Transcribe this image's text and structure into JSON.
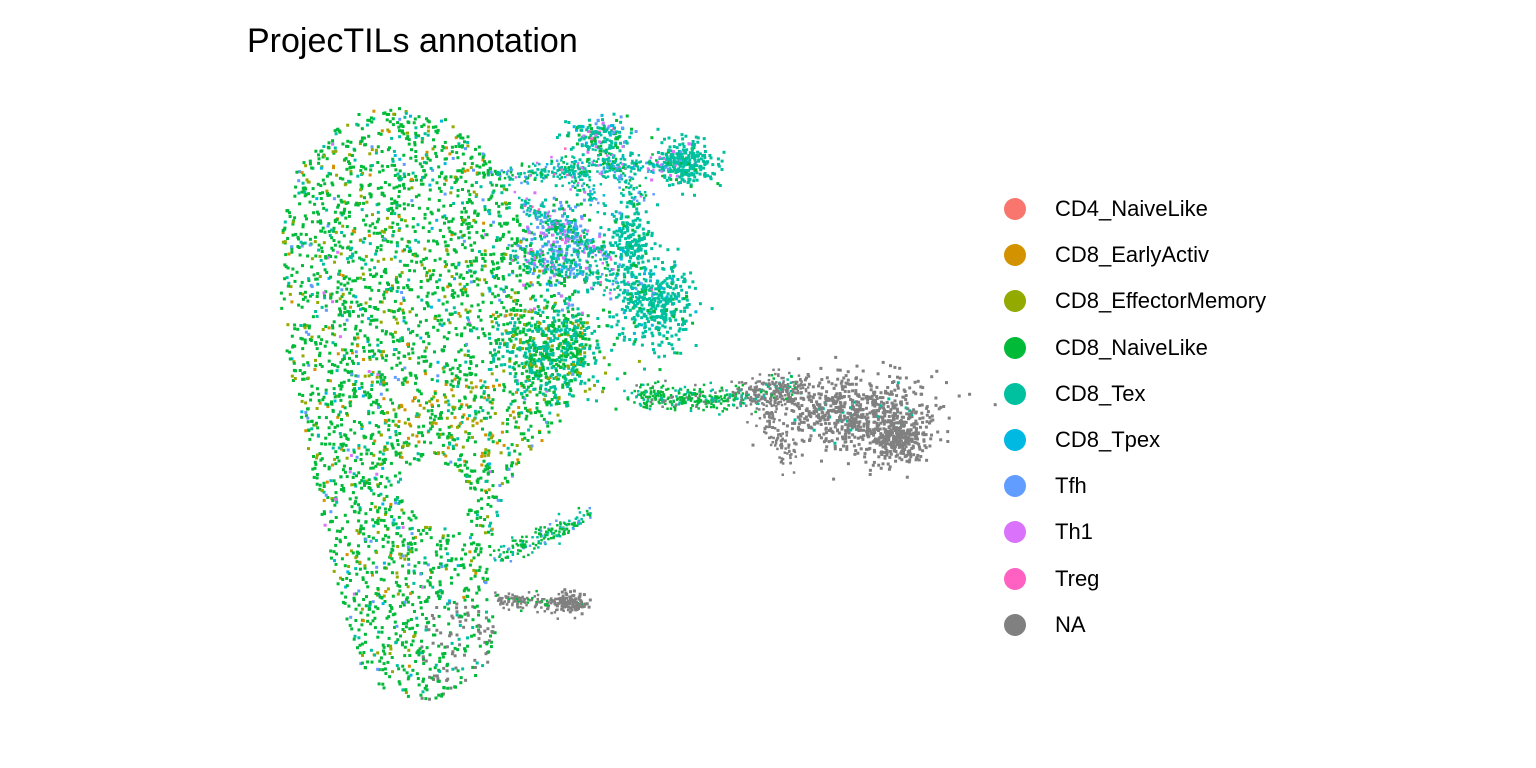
{
  "chart_data": {
    "type": "scatter",
    "title": "ProjecTILs annotation",
    "xlabel": "",
    "ylabel": "",
    "grid": false,
    "axes_visible": false,
    "legend_placement": "right",
    "categories": [
      {
        "name": "CD4_NaiveLike",
        "color": "#F8766D"
      },
      {
        "name": "CD8_EarlyActiv",
        "color": "#D39200"
      },
      {
        "name": "CD8_EffectorMemory",
        "color": "#93AA00"
      },
      {
        "name": "CD8_NaiveLike",
        "color": "#00BA38"
      },
      {
        "name": "CD8_Tex",
        "color": "#00C19F"
      },
      {
        "name": "CD8_Tpex",
        "color": "#00B9E3"
      },
      {
        "name": "Tfh",
        "color": "#619CFF"
      },
      {
        "name": "Th1",
        "color": "#DB72FB"
      },
      {
        "name": "Treg",
        "color": "#FF61C3"
      },
      {
        "name": "NA",
        "color": "#808080"
      }
    ]
  }
}
